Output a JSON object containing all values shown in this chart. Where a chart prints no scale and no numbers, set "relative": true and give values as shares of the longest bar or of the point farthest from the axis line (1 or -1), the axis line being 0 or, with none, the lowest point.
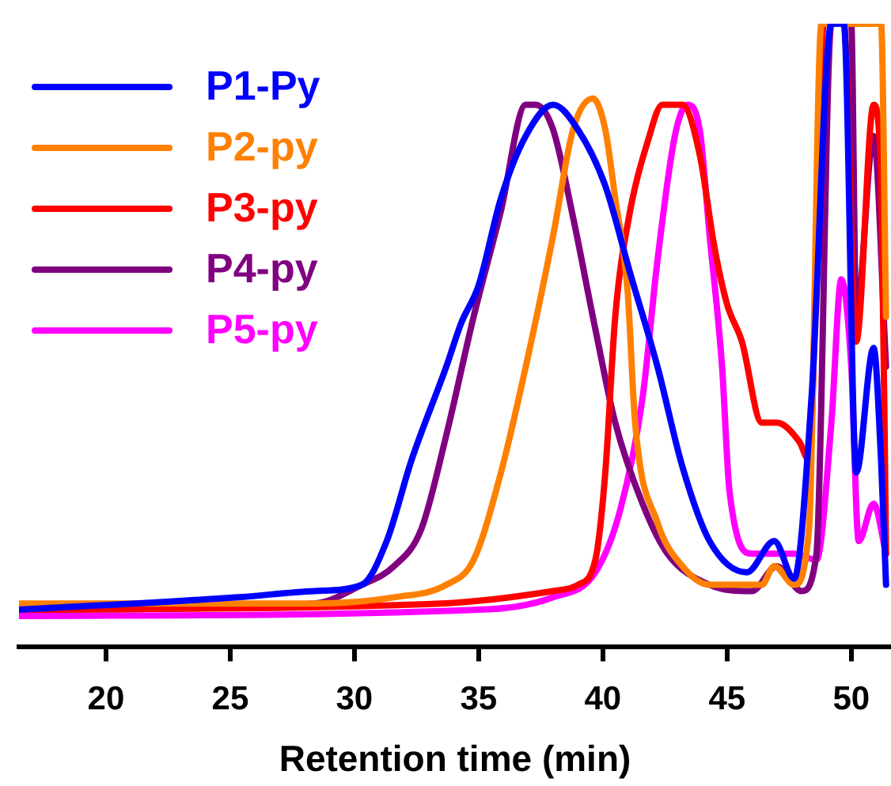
{
  "chart_data": {
    "type": "line",
    "relative": true,
    "xlabel": "Retention time (min)",
    "xlim": [
      16.5,
      51.6
    ],
    "xticks": [
      20,
      25,
      30,
      35,
      40,
      45,
      50
    ],
    "grid": false,
    "legend": "top left",
    "series": [
      {
        "name": "P1-Py",
        "color": "#0000ff",
        "x": [
          16.5,
          25.3,
          28.4,
          30.3,
          31.3,
          32.3,
          33.7,
          34.3,
          35.0,
          35.9,
          36.9,
          38.0,
          39.0,
          40.1,
          41.1,
          42.2,
          43.2,
          44.3,
          45.8,
          46.9,
          47.7,
          48.4,
          49.2,
          49.7,
          50.2,
          50.9,
          51.2,
          51.4
        ],
        "values": [
          0.06,
          0.08,
          0.09,
          0.1,
          0.17,
          0.3,
          0.45,
          0.52,
          0.58,
          0.72,
          0.82,
          0.87,
          0.83,
          0.74,
          0.6,
          0.45,
          0.29,
          0.17,
          0.12,
          0.17,
          0.11,
          0.4,
          1,
          1,
          0.28,
          0.48,
          0.3,
          0.1
        ]
      },
      {
        "name": "P2-py",
        "color": "#ff8000",
        "x": [
          16.5,
          28.4,
          31.6,
          33.7,
          34.8,
          35.9,
          36.9,
          38.0,
          38.8,
          39.6,
          40.1,
          40.5,
          41.0,
          41.3,
          42.2,
          43.2,
          44.3,
          46.4,
          46.9,
          47.7,
          48.3,
          48.8,
          51.2,
          51.4
        ],
        "values": [
          0.07,
          0.07,
          0.08,
          0.1,
          0.14,
          0.28,
          0.45,
          0.66,
          0.83,
          0.88,
          0.83,
          0.72,
          0.57,
          0.36,
          0.2,
          0.13,
          0.1,
          0.1,
          0.13,
          0.1,
          0.19,
          1,
          1,
          0.53
        ]
      },
      {
        "name": "P3-py",
        "color": "#ff0000",
        "x": [
          16.5,
          33.5,
          38.0,
          39.0,
          39.7,
          40.1,
          40.5,
          41.1,
          41.8,
          42.4,
          43.2,
          43.9,
          44.5,
          45.0,
          45.6,
          46.4,
          47.0,
          47.9,
          48.3,
          48.9,
          49.7,
          50.2,
          50.9,
          51.2,
          51.4
        ],
        "values": [
          0.06,
          0.07,
          0.09,
          0.1,
          0.14,
          0.28,
          0.53,
          0.7,
          0.81,
          0.87,
          0.87,
          0.79,
          0.64,
          0.55,
          0.49,
          0.36,
          0.36,
          0.33,
          0.3,
          1,
          1,
          0.49,
          0.87,
          0.76,
          0.15
        ]
      },
      {
        "name": "P4-py",
        "color": "#800080",
        "x": [
          16.5,
          28.4,
          30.3,
          31.6,
          32.7,
          33.7,
          34.8,
          35.9,
          36.9,
          37.3,
          38.0,
          38.8,
          39.7,
          40.5,
          41.6,
          42.6,
          44.3,
          46.0,
          47.0,
          48.0,
          48.6,
          49.2,
          50.0,
          50.2,
          50.9,
          51.4
        ],
        "values": [
          0.06,
          0.07,
          0.1,
          0.13,
          0.19,
          0.34,
          0.53,
          0.7,
          0.87,
          0.87,
          0.83,
          0.69,
          0.51,
          0.36,
          0.23,
          0.15,
          0.1,
          0.09,
          0.13,
          0.09,
          0.15,
          1,
          1,
          0.53,
          0.82,
          0.45
        ]
      },
      {
        "name": "P5-py",
        "color": "#ff00ff",
        "x": [
          16.5,
          35.0,
          38.0,
          39.7,
          40.7,
          41.6,
          42.2,
          42.9,
          43.4,
          43.9,
          44.3,
          44.8,
          45.1,
          46.0,
          46.9,
          47.7,
          48.6,
          49.2,
          49.6,
          50.0,
          50.3,
          50.9,
          51.4
        ],
        "values": [
          0.05,
          0.06,
          0.08,
          0.12,
          0.22,
          0.4,
          0.62,
          0.82,
          0.87,
          0.83,
          0.66,
          0.45,
          0.25,
          0.15,
          0.15,
          0.15,
          0.14,
          0.36,
          0.59,
          0.45,
          0.17,
          0.23,
          0.15
        ]
      }
    ]
  }
}
